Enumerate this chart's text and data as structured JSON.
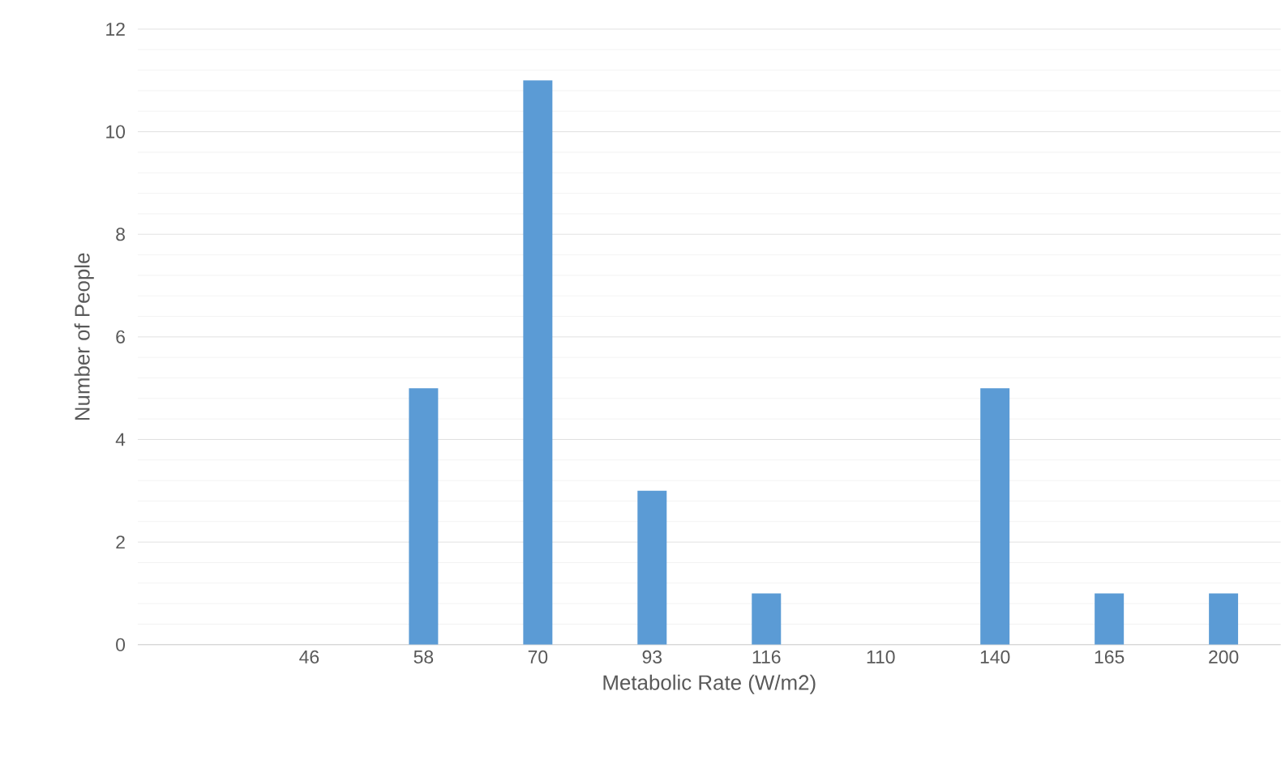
{
  "chart_data": {
    "type": "bar",
    "categories": [
      null,
      "46",
      "58",
      "70",
      "93",
      "116",
      "110",
      "140",
      "165",
      "200"
    ],
    "values": [
      null,
      0,
      5,
      11,
      3,
      1,
      0,
      5,
      1,
      1
    ],
    "color": "#5b9bd5",
    "xlabel": "Metabolic Rate (W/m2)",
    "ylabel": "Number of People",
    "ylim": [
      0,
      12
    ],
    "yticks": [
      0,
      2,
      4,
      6,
      8,
      10,
      12
    ],
    "grid": "y"
  }
}
